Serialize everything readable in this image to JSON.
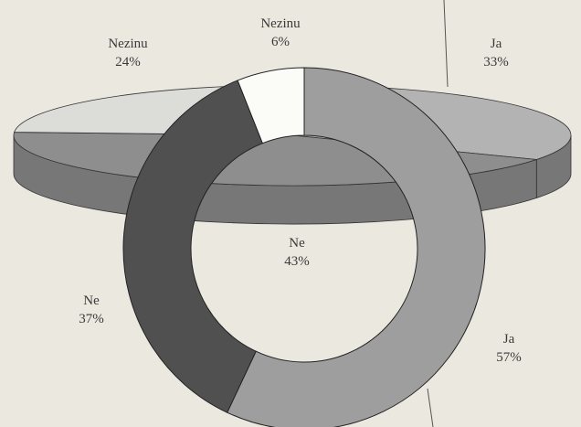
{
  "chart_data": [
    {
      "type": "pie3d",
      "categories": [
        "Ja",
        "Ne",
        "Nezinu"
      ],
      "values": [
        33,
        43,
        24
      ],
      "value_labels": [
        "33%",
        "43%",
        "24%"
      ],
      "colors": [
        "#b3b3b3",
        "#8e8e8e",
        "#dcdcd8"
      ]
    },
    {
      "type": "donut",
      "categories": [
        "Ja",
        "Ne",
        "Nezinu"
      ],
      "values": [
        57,
        37,
        6
      ],
      "value_labels": [
        "57%",
        "37%",
        "6%"
      ],
      "colors": [
        "#9e9e9e",
        "#505050",
        "#fbfbf8"
      ]
    }
  ]
}
